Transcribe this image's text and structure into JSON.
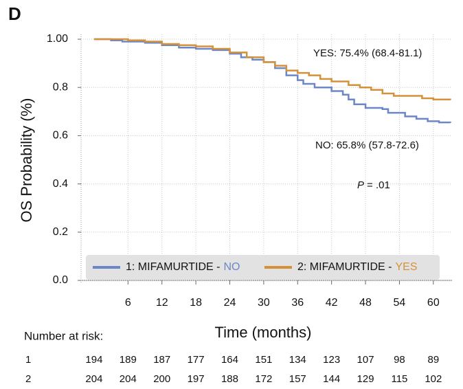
{
  "chart_data": {
    "type": "km",
    "panel": "D",
    "x_label": "Time (months)",
    "y_label": "OS Probability (%)",
    "xlim": [
      -2.3,
      63.3
    ],
    "ylim": [
      0,
      1.02
    ],
    "xticks": [
      6,
      12,
      18,
      24,
      30,
      36,
      42,
      48,
      54,
      60
    ],
    "yticks": [
      {
        "value": 0,
        "label": "0.0"
      },
      0.2,
      0.4,
      0.6,
      0.8,
      {
        "value": 1,
        "label": "1.00"
      }
    ],
    "grid": true,
    "series": [
      {
        "group": "1: MIFAMURTIDE -",
        "name": "NO",
        "color": "#6b87c7",
        "x": [
          0,
          3,
          5,
          9,
          12,
          15,
          18,
          21,
          24,
          26,
          28,
          30,
          32,
          34,
          36,
          37,
          39,
          42,
          44,
          45,
          46,
          48,
          51,
          52,
          55,
          57,
          59,
          61,
          63
        ],
        "values": [
          1.0,
          0.995,
          0.99,
          0.985,
          0.975,
          0.965,
          0.96,
          0.955,
          0.94,
          0.925,
          0.915,
          0.905,
          0.88,
          0.85,
          0.83,
          0.815,
          0.8,
          0.785,
          0.77,
          0.75,
          0.73,
          0.715,
          0.71,
          0.695,
          0.68,
          0.67,
          0.66,
          0.655,
          0.653
        ]
      },
      {
        "group": "2: MIFAMURTIDE -",
        "name": "YES",
        "color": "#d4913a",
        "x": [
          0,
          6,
          9,
          12,
          15,
          18,
          21,
          24,
          27,
          30,
          32,
          34,
          36,
          38,
          40,
          42,
          45,
          47,
          49,
          51,
          53,
          58,
          60,
          63
        ],
        "values": [
          1.0,
          0.995,
          0.99,
          0.98,
          0.975,
          0.97,
          0.96,
          0.945,
          0.925,
          0.905,
          0.89,
          0.87,
          0.86,
          0.85,
          0.835,
          0.825,
          0.81,
          0.8,
          0.79,
          0.775,
          0.765,
          0.755,
          0.75,
          0.748
        ]
      }
    ],
    "annotations": {
      "yes": "YES: 75.4% (68.4-81.1)",
      "no": "NO: 65.8% (57.8-72.6)",
      "p_symbol": "P",
      "p_value": "= .01"
    },
    "risk_table": {
      "title": "Number at risk:",
      "rows": [
        {
          "label": "1",
          "values": [
            194,
            189,
            187,
            177,
            164,
            151,
            134,
            123,
            107,
            98,
            89
          ]
        },
        {
          "label": "2",
          "values": [
            204,
            204,
            200,
            197,
            188,
            172,
            157,
            144,
            129,
            115,
            102
          ]
        }
      ]
    }
  }
}
